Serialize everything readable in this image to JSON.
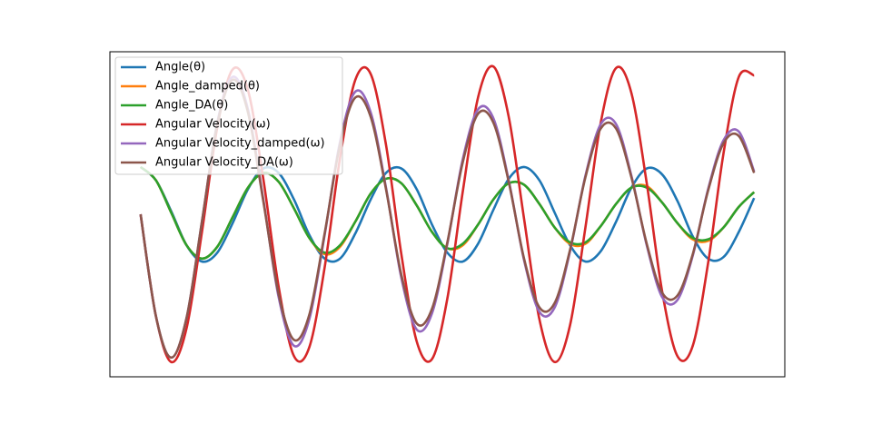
{
  "chart_data": {
    "type": "line",
    "x": [
      0,
      0.5,
      1,
      1.5,
      2,
      2.5,
      3,
      3.5,
      4,
      4.5,
      5,
      5.5,
      6,
      6.5,
      7,
      7.5,
      8,
      8.5,
      9,
      9.5,
      10,
      10.5,
      11,
      11.5,
      12,
      12.5,
      13,
      13.5,
      14,
      14.5,
      15,
      15.5,
      16,
      16.5,
      17,
      17.5,
      18,
      18.5,
      19,
      19.5,
      20
    ],
    "xlim": [
      -1,
      21
    ],
    "ylim": [
      -1.1,
      1.1
    ],
    "legend": "upper left",
    "series": [
      {
        "name": "Angle(θ)",
        "color": "#1f77b4",
        "values": [
          0.32,
          0.23,
          0.02,
          -0.21,
          -0.32,
          -0.26,
          -0.06,
          0.17,
          0.31,
          0.28,
          0.1,
          -0.14,
          -0.3,
          -0.3,
          -0.13,
          0.1,
          0.28,
          0.31,
          0.17,
          -0.07,
          -0.26,
          -0.32,
          -0.2,
          0.03,
          0.24,
          0.32,
          0.23,
          0.01,
          -0.21,
          -0.32,
          -0.25,
          -0.05,
          0.18,
          0.31,
          0.27,
          0.09,
          -0.15,
          -0.3,
          -0.29,
          -0.12,
          0.11
        ]
      },
      {
        "name": "Angle_damped(θ)",
        "color": "#ff7f0e",
        "values": [
          0.32,
          0.23,
          0.01,
          -0.21,
          -0.3,
          -0.22,
          -0.02,
          0.18,
          0.28,
          0.22,
          0.04,
          -0.16,
          -0.27,
          -0.22,
          -0.05,
          0.14,
          0.24,
          0.21,
          0.06,
          -0.12,
          -0.23,
          -0.21,
          -0.07,
          0.1,
          0.21,
          0.2,
          0.07,
          -0.09,
          -0.2,
          -0.2,
          -0.08,
          0.07,
          0.18,
          0.19,
          0.08,
          -0.06,
          -0.17,
          -0.18,
          -0.09,
          0.05,
          0.15
        ]
      },
      {
        "name": "Angle_DA(θ)",
        "color": "#2ca02c",
        "values": [
          0.32,
          0.23,
          0.01,
          -0.21,
          -0.3,
          -0.22,
          -0.02,
          0.18,
          0.28,
          0.22,
          0.04,
          -0.16,
          -0.26,
          -0.21,
          -0.05,
          0.14,
          0.24,
          0.21,
          0.06,
          -0.12,
          -0.23,
          -0.2,
          -0.07,
          0.1,
          0.21,
          0.2,
          0.07,
          -0.09,
          -0.19,
          -0.19,
          -0.08,
          0.07,
          0.18,
          0.18,
          0.08,
          -0.06,
          -0.16,
          -0.17,
          -0.09,
          0.05,
          0.15
        ]
      },
      {
        "name": "Angular Velocity(ω)",
        "color": "#d62728",
        "values": [
          0,
          -0.69,
          -1.0,
          -0.77,
          -0.12,
          0.59,
          0.98,
          0.84,
          0.24,
          -0.49,
          -0.96,
          -0.9,
          -0.36,
          0.38,
          0.91,
          0.95,
          0.47,
          -0.27,
          -0.86,
          -0.98,
          -0.57,
          0.15,
          0.79,
          1.0,
          0.66,
          -0.03,
          -0.71,
          -1.0,
          -0.75,
          -0.09,
          0.62,
          0.99,
          0.82,
          0.21,
          -0.52,
          -0.96,
          -0.89,
          -0.33,
          0.41,
          0.93,
          0.94
        ]
      },
      {
        "name": "Angular Velocity_damped(ω)",
        "color": "#9467bd",
        "values": [
          0,
          -0.69,
          -0.97,
          -0.7,
          -0.05,
          0.62,
          0.93,
          0.71,
          0.1,
          -0.56,
          -0.89,
          -0.71,
          -0.14,
          0.49,
          0.83,
          0.69,
          0.18,
          -0.43,
          -0.78,
          -0.67,
          -0.2,
          0.37,
          0.71,
          0.65,
          0.23,
          -0.31,
          -0.66,
          -0.63,
          -0.25,
          0.26,
          0.61,
          0.61,
          0.26,
          -0.21,
          -0.56,
          -0.58,
          -0.28,
          0.17,
          0.5,
          0.56,
          0.29
        ]
      },
      {
        "name": "Angular Velocity_DA(ω)",
        "color": "#8c564b",
        "values": [
          0,
          -0.69,
          -0.97,
          -0.7,
          -0.05,
          0.61,
          0.91,
          0.69,
          0.09,
          -0.54,
          -0.85,
          -0.68,
          -0.13,
          0.47,
          0.79,
          0.66,
          0.17,
          -0.41,
          -0.74,
          -0.64,
          -0.19,
          0.35,
          0.68,
          0.62,
          0.22,
          -0.3,
          -0.63,
          -0.6,
          -0.24,
          0.25,
          0.58,
          0.58,
          0.25,
          -0.2,
          -0.53,
          -0.55,
          -0.27,
          0.16,
          0.48,
          0.53,
          0.28
        ]
      }
    ]
  }
}
